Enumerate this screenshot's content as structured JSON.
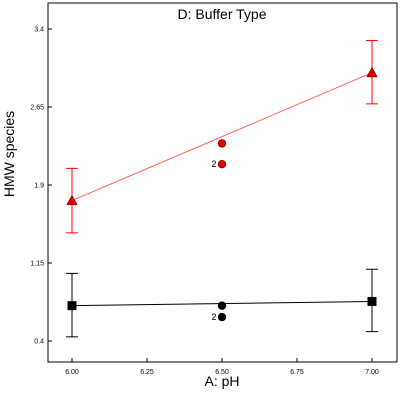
{
  "chart_data": {
    "type": "line",
    "title": "D: Buffer Type",
    "xlabel": "A: pH",
    "ylabel": "HMW species",
    "xlim": [
      6.0,
      7.0
    ],
    "ylim": [
      0.4,
      3.4
    ],
    "x_ticks": [
      "6.00",
      "6.25",
      "6.50",
      "6.75",
      "7.00"
    ],
    "y_ticks": [
      "0.4",
      "1.15",
      "1.9",
      "2.65",
      "3.4"
    ],
    "grid": false,
    "series": [
      {
        "color": "#ff0000",
        "marker": "triangle",
        "line": {
          "x": [
            6.0,
            7.0
          ],
          "y": [
            1.75,
            2.98
          ]
        },
        "endpoints": [
          {
            "x": 6.0,
            "y": 1.75,
            "err_low": 1.44,
            "err_high": 2.06
          },
          {
            "x": 7.0,
            "y": 2.98,
            "err_low": 2.68,
            "err_high": 3.29
          }
        ],
        "points": [
          {
            "x": 6.5,
            "y": 2.3,
            "label": ""
          },
          {
            "x": 6.5,
            "y": 2.1,
            "label": "2"
          }
        ]
      },
      {
        "color": "#000000",
        "marker": "square",
        "line": {
          "x": [
            6.0,
            7.0
          ],
          "y": [
            0.74,
            0.78
          ]
        },
        "endpoints": [
          {
            "x": 6.0,
            "y": 0.74,
            "err_low": 0.44,
            "err_high": 1.05
          },
          {
            "x": 7.0,
            "y": 0.78,
            "err_low": 0.49,
            "err_high": 1.09
          }
        ],
        "points": [
          {
            "x": 6.5,
            "y": 0.74,
            "label": ""
          },
          {
            "x": 6.5,
            "y": 0.63,
            "label": "2"
          }
        ]
      }
    ]
  }
}
